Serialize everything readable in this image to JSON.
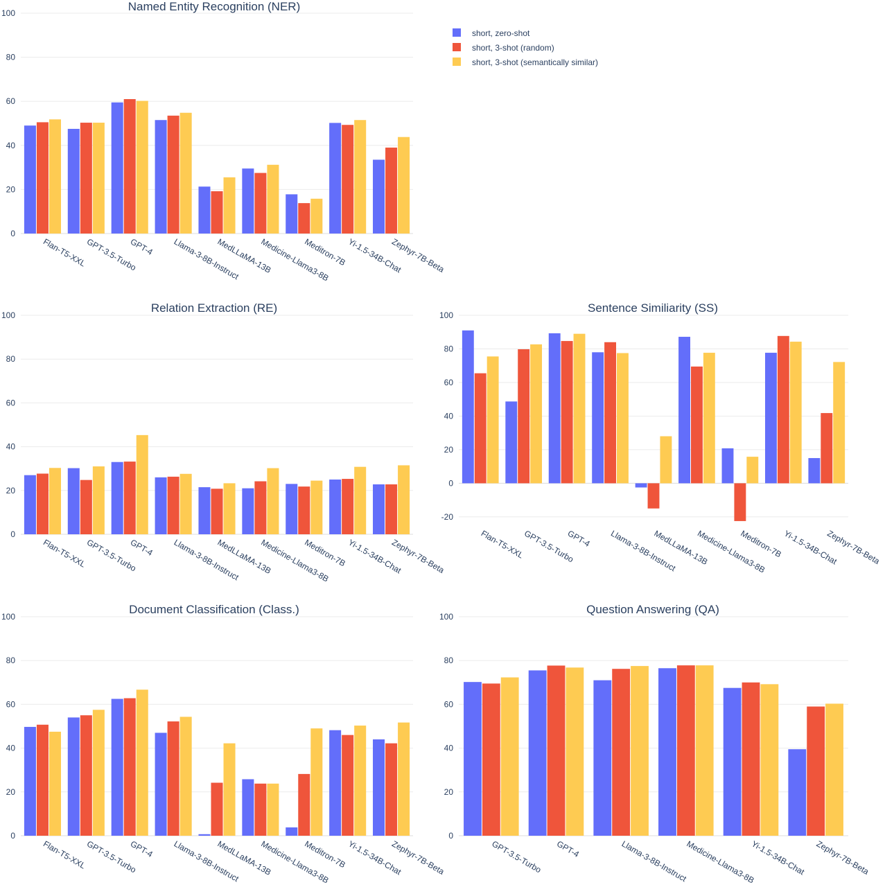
{
  "colors": {
    "short, zero-shot": "#636efa",
    "short, 3-shot (random)": "#ef553b",
    "short, 3-shot (semantically similar)": "#fecb52"
  },
  "legend": {
    "placement": "top-right",
    "items": [
      "short, zero-shot",
      "short, 3-shot (random)",
      "short, 3-shot (semantically similar)"
    ]
  },
  "chart_data": [
    {
      "id": "ner",
      "type": "bar",
      "title": "Named Entity Recognition (NER)",
      "categories": [
        "Flan-T5-XXL",
        "GPT-3.5-Turbo",
        "GPT-4",
        "Llama-3-8B-Instruct",
        "MedLLaMA-13B",
        "Medicine-Llama3-8B",
        "Meditron-7B",
        "Yi-1.5-34B-Chat",
        "Zephyr-7B-Beta"
      ],
      "series": [
        {
          "name": "short, zero-shot",
          "values": [
            49,
            47.5,
            59.5,
            51.5,
            21.3,
            29.5,
            17.8,
            50.2,
            33.5
          ]
        },
        {
          "name": "short, 3-shot (random)",
          "values": [
            50.5,
            50.3,
            61,
            53.5,
            19.2,
            27.5,
            13.8,
            49.3,
            39
          ]
        },
        {
          "name": "short, 3-shot (semantically similar)",
          "values": [
            51.8,
            50.3,
            60.2,
            54.8,
            25.5,
            31.2,
            15.8,
            51.5,
            43.8
          ]
        }
      ],
      "ylim": [
        0,
        100
      ],
      "yticks": [
        0,
        20,
        40,
        60,
        80,
        100
      ],
      "grid": true
    },
    {
      "id": "re",
      "type": "bar",
      "title": "Relation Extraction (RE)",
      "categories": [
        "Flan-T5-XXL",
        "GPT-3.5-Turbo",
        "GPT-4",
        "Llama-3-8B-Instruct",
        "MedLLaMA-13B",
        "Medicine-Llama3-8B",
        "Meditron-7B",
        "Yi-1.5-34B-Chat",
        "Zephyr-7B-Beta"
      ],
      "series": [
        {
          "name": "short, zero-shot",
          "values": [
            27,
            30.2,
            33,
            26,
            21.5,
            21,
            23,
            25,
            22.8
          ]
        },
        {
          "name": "short, 3-shot (random)",
          "values": [
            27.7,
            24.8,
            33.2,
            26.3,
            20.8,
            24.2,
            21.8,
            25.3,
            22.8
          ]
        },
        {
          "name": "short, 3-shot (semantically similar)",
          "values": [
            30.3,
            31,
            45.3,
            27.6,
            23.3,
            30.2,
            24.5,
            30.8,
            31.5
          ]
        }
      ],
      "ylim": [
        0,
        100
      ],
      "yticks": [
        0,
        20,
        40,
        60,
        80,
        100
      ],
      "grid": true
    },
    {
      "id": "ss",
      "type": "bar",
      "title": "Sentence Similiarity (SS)",
      "categories": [
        "Flan-T5-XXL",
        "GPT-3.5-Turbo",
        "GPT-4",
        "Llama-3-8B-Instruct",
        "MedLLaMA-13B",
        "Medicine-Llama3-8B",
        "Meditron-7B",
        "Yi-1.5-34B-Chat",
        "Zephyr-7B-Beta"
      ],
      "series": [
        {
          "name": "short, zero-shot",
          "values": [
            91,
            48.7,
            89.3,
            78,
            -2.5,
            87.2,
            20.8,
            77.7,
            15
          ]
        },
        {
          "name": "short, 3-shot (random)",
          "values": [
            65.5,
            79.8,
            84.7,
            84,
            -15,
            69.5,
            -22.5,
            87.7,
            41.8
          ]
        },
        {
          "name": "short, 3-shot (semantically similar)",
          "values": [
            75.5,
            82.7,
            89,
            77.5,
            28,
            77.7,
            15.8,
            84.3,
            72.2
          ]
        }
      ],
      "ylim": [
        -25,
        100
      ],
      "yticks": [
        -20,
        0,
        20,
        40,
        60,
        80,
        100
      ],
      "grid": true
    },
    {
      "id": "class",
      "type": "bar",
      "title": "Document Classification (Class.)",
      "categories": [
        "Flan-T5-XXL",
        "GPT-3.5-Turbo",
        "GPT-4",
        "Llama-3-8B-Instruct",
        "MedLLaMA-13B",
        "Medicine-Llama3-8B",
        "Meditron-7B",
        "Yi-1.5-34B-Chat",
        "Zephyr-7B-Beta"
      ],
      "series": [
        {
          "name": "short, zero-shot",
          "values": [
            49.7,
            54,
            62.5,
            47,
            0.7,
            25.8,
            3.8,
            48.2,
            44
          ]
        },
        {
          "name": "short, 3-shot (random)",
          "values": [
            50.7,
            55,
            62.8,
            52.2,
            24.2,
            23.8,
            28.2,
            46,
            42.2
          ]
        },
        {
          "name": "short, 3-shot (semantically similar)",
          "values": [
            47.5,
            57.5,
            66.7,
            54.3,
            42.2,
            23.8,
            49,
            50.3,
            51.7
          ]
        }
      ],
      "ylim": [
        0,
        100
      ],
      "yticks": [
        0,
        20,
        40,
        60,
        80,
        100
      ],
      "grid": true
    },
    {
      "id": "qa",
      "type": "bar",
      "title": "Question Answering (QA)",
      "categories": [
        "GPT-3.5-Turbo",
        "GPT-4",
        "Llama-3-8B-Instruct",
        "Medicine-Llama3-8B",
        "Yi-1.5-34B-Chat",
        "Zephyr-7B-Beta"
      ],
      "series": [
        {
          "name": "short, zero-shot",
          "values": [
            70.2,
            75.5,
            71,
            76.5,
            67.5,
            39.5
          ]
        },
        {
          "name": "short, 3-shot (random)",
          "values": [
            69.5,
            77.7,
            76.2,
            77.8,
            70,
            59
          ]
        },
        {
          "name": "short, 3-shot (semantically similar)",
          "values": [
            72.3,
            76.8,
            77.5,
            77.8,
            69.2,
            60.3
          ]
        }
      ],
      "ylim": [
        0,
        100
      ],
      "yticks": [
        0,
        20,
        40,
        60,
        80,
        100
      ],
      "grid": true
    }
  ]
}
